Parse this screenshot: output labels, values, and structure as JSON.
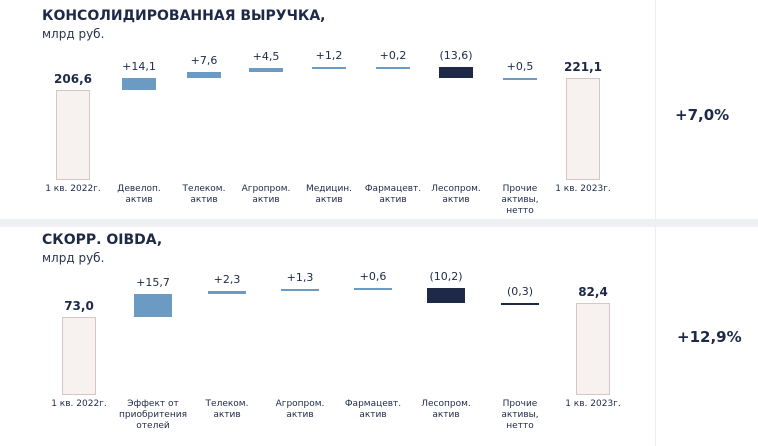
{
  "chart_data": [
    {
      "type": "waterfall",
      "title": "КОНСОЛИДИРОВАННАЯ ВЫРУЧКА,",
      "subtitle": "млрд руб.",
      "categories": [
        "1 кв. 2022г.",
        "Девелоп.\nактив",
        "Телеком.\nактив",
        "Агропром.\nактив",
        "Медицин.\nактив",
        "Фармацевт.\nактив",
        "Лесопром.\nактив",
        "Прочие\nактивы,\nнетто",
        "1 кв. 2023г."
      ],
      "values": [
        206.6,
        14.1,
        7.6,
        4.5,
        1.2,
        0.2,
        -13.6,
        0.5,
        221.1
      ],
      "value_labels": [
        "206,6",
        "+14,1",
        "+7,6",
        "+4,5",
        "+1,2",
        "+0,2",
        "(13,6)",
        "+0,5",
        "221,1"
      ],
      "ylim": [
        100,
        240
      ],
      "annotation": "+7,0%",
      "total_color": "#f7f1f0",
      "total_border": "#d6c6c4",
      "up_color": "#6b9bc3",
      "down_color": "#1d2947"
    },
    {
      "type": "waterfall",
      "title": "СКОРР. OIBDA,",
      "subtitle": "млрд руб.",
      "categories": [
        "1 кв. 2022г.",
        "Эффект от\nприобритения\nотелей",
        "Телеком.\nактив",
        "Агропром.\nактив",
        "Фармацевт.\nактив",
        "Лесопром.\nактив",
        "Прочие\nактивы,\nнетто",
        "1 кв. 2023г."
      ],
      "values": [
        73.0,
        15.7,
        2.3,
        1.3,
        0.6,
        -10.2,
        -0.3,
        82.4
      ],
      "value_labels": [
        "73,0",
        "+15,7",
        "+2,3",
        "+1,3",
        "+0,6",
        "(10,2)",
        "(0,3)",
        "82,4"
      ],
      "ylim": [
        20,
        95
      ],
      "annotation": "+12,9%",
      "total_color": "#f7f1f0",
      "total_border": "#d6c6c4",
      "up_color": "#6b9bc3",
      "down_color": "#1d2947"
    }
  ]
}
